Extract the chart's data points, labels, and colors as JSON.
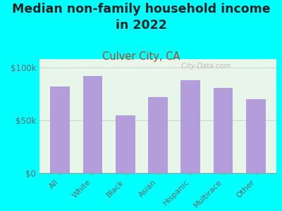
{
  "title": "Median non-family household income\nin 2022",
  "subtitle": "Culver City, CA",
  "categories": [
    "All",
    "White",
    "Black",
    "Asian",
    "Hispanic",
    "Multirace",
    "Other"
  ],
  "values": [
    82000,
    92000,
    55000,
    72000,
    88000,
    81000,
    70000
  ],
  "bar_color": "#b39ddb",
  "background_color": "#00ffff",
  "plot_bg_color": "#e8f5e9",
  "title_color": "#212121",
  "subtitle_color": "#b5451b",
  "tick_label_color": "#666666",
  "ytick_labels": [
    "$0",
    "$50k",
    "$100k"
  ],
  "ytick_values": [
    0,
    50000,
    100000
  ],
  "ylim": [
    0,
    108000
  ],
  "watermark": "  City-Data.com",
  "title_fontsize": 12.5,
  "subtitle_fontsize": 10.5,
  "bar_width": 0.6
}
